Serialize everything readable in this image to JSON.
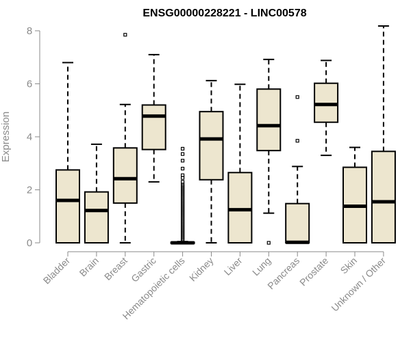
{
  "chart_data": {
    "type": "box",
    "title": "ENSG00000228221 - LINC00578",
    "ylabel": "Expression",
    "xlabel": "",
    "ylim": [
      0,
      8.3
    ],
    "yticks": [
      0,
      2,
      4,
      6,
      8
    ],
    "grid": false,
    "legend": "none",
    "colors": {
      "box_fill": "#ede6cf",
      "stroke": "#000000",
      "axis": "#8a8a8a"
    },
    "categories": [
      "Bladder",
      "Brain",
      "Breast",
      "Gastric",
      "Hematopoietic cells",
      "Kidney",
      "Liver",
      "Lung",
      "Pancreas",
      "Prostate",
      "Skin",
      "Unknown / Other"
    ],
    "boxes": [
      {
        "whisker_low": 0,
        "q1": 0,
        "median": 1.6,
        "q3": 2.75,
        "whisker_high": 6.8,
        "outliers": []
      },
      {
        "whisker_low": 0,
        "q1": 0,
        "median": 1.22,
        "q3": 1.92,
        "whisker_high": 3.72,
        "outliers": []
      },
      {
        "whisker_low": 0,
        "q1": 1.5,
        "median": 2.42,
        "q3": 3.58,
        "whisker_high": 5.22,
        "outliers": [
          7.85
        ]
      },
      {
        "whisker_low": 2.3,
        "q1": 3.52,
        "median": 4.78,
        "q3": 5.2,
        "whisker_high": 7.1,
        "outliers": []
      },
      {
        "whisker_low": 0,
        "q1": 0,
        "median": 0,
        "q3": 0.02,
        "whisker_high": 0.05,
        "outliers": [
          0.1,
          0.15,
          0.2,
          0.25,
          0.3,
          0.35,
          0.4,
          0.45,
          0.5,
          0.55,
          0.6,
          0.65,
          0.7,
          0.75,
          0.8,
          0.85,
          0.9,
          0.95,
          1.0,
          1.05,
          1.1,
          1.15,
          1.2,
          1.25,
          1.3,
          1.35,
          1.4,
          1.45,
          1.5,
          1.55,
          1.6,
          1.65,
          1.7,
          1.75,
          1.8,
          1.85,
          1.9,
          1.95,
          2.0,
          2.05,
          2.1,
          2.15,
          2.2,
          2.3,
          2.45,
          2.55,
          2.8,
          3.1,
          3.35,
          3.55
        ]
      },
      {
        "whisker_low": 0,
        "q1": 2.38,
        "median": 3.92,
        "q3": 4.95,
        "whisker_high": 6.12,
        "outliers": []
      },
      {
        "whisker_low": 0,
        "q1": 0,
        "median": 1.25,
        "q3": 2.65,
        "whisker_high": 5.98,
        "outliers": []
      },
      {
        "whisker_low": 1.12,
        "q1": 3.48,
        "median": 4.42,
        "q3": 5.8,
        "whisker_high": 6.92,
        "outliers": [
          0
        ]
      },
      {
        "whisker_low": 0,
        "q1": 0,
        "median": 0.02,
        "q3": 1.48,
        "whisker_high": 2.88,
        "outliers": [
          3.85,
          5.5
        ]
      },
      {
        "whisker_low": 3.3,
        "q1": 4.55,
        "median": 5.22,
        "q3": 6.02,
        "whisker_high": 6.88,
        "outliers": []
      },
      {
        "whisker_low": 0,
        "q1": 0,
        "median": 1.38,
        "q3": 2.85,
        "whisker_high": 3.6,
        "outliers": []
      },
      {
        "whisker_low": 0,
        "q1": 0,
        "median": 1.55,
        "q3": 3.45,
        "whisker_high": 8.18,
        "outliers": []
      }
    ]
  }
}
